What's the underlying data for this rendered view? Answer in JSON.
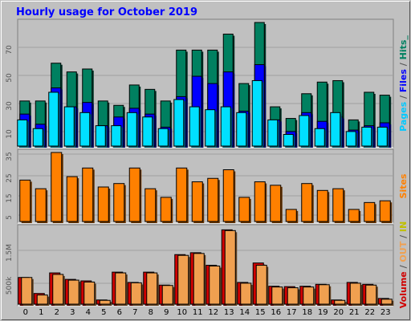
{
  "chart_data": {
    "type": "bar",
    "title": "Hourly usage for October 2019",
    "categories": [
      "0",
      "1",
      "2",
      "3",
      "4",
      "5",
      "6",
      "7",
      "8",
      "9",
      "10",
      "11",
      "12",
      "13",
      "14",
      "15",
      "16",
      "17",
      "18",
      "19",
      "20",
      "21",
      "22",
      "23"
    ],
    "panels": [
      {
        "name": "requests",
        "yticks": [
          "10",
          "30",
          "50",
          "70"
        ],
        "ylim": [
          0,
          85
        ],
        "ylabel_parts": [
          {
            "text": "Pages",
            "color": "#00c8ff"
          },
          {
            "text": " / ",
            "color": "#555555"
          },
          {
            "text": "Files",
            "color": "#0000ff"
          },
          {
            "text": " / ",
            "color": "#555555"
          },
          {
            "text": "Hits_",
            "color": "#008060"
          }
        ],
        "series": [
          {
            "name": "Hits",
            "color": "#008060",
            "values": [
              31,
              31,
              57,
              51,
              53,
              31,
              28,
              42,
              39,
              31,
              66,
              66,
              66,
              77,
              43,
              85,
              27,
              19,
              36,
              44,
              45,
              18,
              37,
              35
            ]
          },
          {
            "name": "Files",
            "color": "#0000ff",
            "values": [
              22,
              15,
              40,
              27,
              30,
              14,
              20,
              26,
              22,
              13,
              34,
              48,
              43,
              51,
              24,
              56,
              18,
              10,
              23,
              17,
              20,
              11,
              14,
              16
            ]
          },
          {
            "name": "Pages",
            "color": "#00e0ff",
            "values": [
              18,
              12,
              37,
              27,
              23,
              14,
              14,
              23,
              20,
              12,
              32,
              27,
              25,
              27,
              23,
              45,
              18,
              8,
              21,
              12,
              23,
              10,
              13,
              13
            ]
          }
        ]
      },
      {
        "name": "sites",
        "yticks": [
          "5",
          "15",
          "25",
          "35"
        ],
        "ylim": [
          0,
          40
        ],
        "ylabel_parts": [
          {
            "text": "Sites",
            "color": "#ff8000"
          }
        ],
        "series": [
          {
            "name": "Sites",
            "color": "#ff8000",
            "values": [
              24,
              19,
              40,
              26,
              31,
              20,
              22,
              31,
              19,
              14,
              31,
              23,
              25,
              30,
              14,
              23,
              21,
              7,
              22,
              18,
              19,
              7,
              11,
              12
            ]
          }
        ]
      },
      {
        "name": "volume",
        "yticks": [
          "500k",
          "1.5M"
        ],
        "ylim": [
          0,
          2000
        ],
        "ylabel_parts": [
          {
            "text": "Volume",
            "color": "#d00000"
          },
          {
            "text": " / ",
            "color": "#555555"
          },
          {
            "text": "OUT",
            "color": "#f0a050"
          },
          {
            "text": " / ",
            "color": "#555555"
          },
          {
            "text": "IN",
            "color": "#c0c000"
          }
        ],
        "series": [
          {
            "name": "Volume",
            "color": "#d00000",
            "values": [
              700,
              280,
              820,
              650,
              610,
              110,
              840,
              570,
              840,
              500,
              1300,
              1350,
              1020,
              1950,
              570,
              1080,
              470,
              460,
              470,
              520,
              110,
              570,
              520,
              150
            ]
          },
          {
            "name": "OUT",
            "color": "#f0a050",
            "values": [
              700,
              240,
              780,
              630,
              580,
              100,
              820,
              560,
              820,
              490,
              1280,
              1330,
              1000,
              1930,
              550,
              1020,
              450,
              430,
              450,
              510,
              100,
              550,
              500,
              130
            ]
          }
        ]
      }
    ]
  }
}
